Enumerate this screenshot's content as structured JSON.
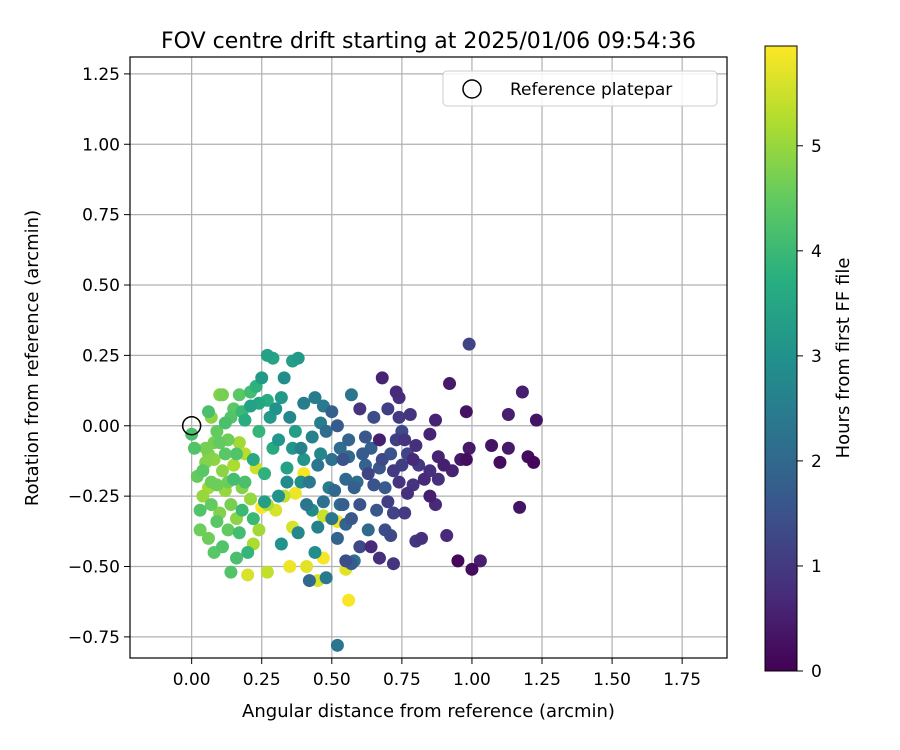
{
  "chart_data": {
    "type": "scatter",
    "title": "FOV centre drift starting at 2025/01/06 09:54:36",
    "xlabel": "Angular distance from reference (arcmin)",
    "ylabel": "Rotation from reference (arcmin)",
    "xlim": [
      -0.22,
      1.91
    ],
    "ylim": [
      -0.825,
      1.31
    ],
    "xticks": [
      0.0,
      0.25,
      0.5,
      0.75,
      1.0,
      1.25,
      1.5,
      1.75
    ],
    "xtick_labels": [
      "0.00",
      "0.25",
      "0.50",
      "0.75",
      "1.00",
      "1.25",
      "1.50",
      "1.75"
    ],
    "yticks": [
      1.25,
      1.0,
      0.75,
      0.5,
      0.25,
      0.0,
      -0.25,
      -0.5,
      -0.75
    ],
    "ytick_labels": [
      "1.25",
      "1.00",
      "0.75",
      "0.50",
      "0.25",
      "0.00",
      "−0.25",
      "−0.50",
      "−0.75"
    ],
    "grid": true,
    "legend": {
      "position": "top-right",
      "entries": [
        "Reference platepar"
      ]
    },
    "reference_point": {
      "x": 0.0,
      "y": 0.0
    },
    "colorbar": {
      "label": "Hours from first FF file",
      "range": [
        0,
        5.95
      ],
      "ticks": [
        0,
        1,
        2,
        3,
        4,
        5
      ],
      "tick_labels": [
        "0",
        "1",
        "2",
        "3",
        "4",
        "5"
      ],
      "colormap": "viridis"
    },
    "points": [
      [
        0.99,
        0.29,
        1.2
      ],
      [
        1.18,
        0.12,
        0.5
      ],
      [
        1.23,
        0.02,
        0.3
      ],
      [
        1.22,
        -0.13,
        0.1
      ],
      [
        1.2,
        -0.11,
        0.2
      ],
      [
        1.17,
        -0.29,
        0.3
      ],
      [
        1.13,
        -0.08,
        0.4
      ],
      [
        1.13,
        0.04,
        0.5
      ],
      [
        1.1,
        -0.13,
        0.2
      ],
      [
        1.07,
        -0.07,
        0.3
      ],
      [
        1.03,
        -0.48,
        0.5
      ],
      [
        1.0,
        -0.51,
        0.2
      ],
      [
        0.99,
        -0.08,
        0.4
      ],
      [
        0.98,
        -0.12,
        0.2
      ],
      [
        0.98,
        0.05,
        0.3
      ],
      [
        0.96,
        -0.12,
        0.4
      ],
      [
        0.95,
        -0.48,
        0.1
      ],
      [
        0.91,
        -0.39,
        0.7
      ],
      [
        0.92,
        0.15,
        0.4
      ],
      [
        0.88,
        -0.11,
        0.6
      ],
      [
        0.9,
        -0.14,
        0.5
      ],
      [
        0.87,
        0.02,
        0.6
      ],
      [
        0.87,
        -0.28,
        0.7
      ],
      [
        0.85,
        -0.03,
        0.6
      ],
      [
        0.85,
        -0.16,
        0.8
      ],
      [
        0.85,
        -0.25,
        0.5
      ],
      [
        0.82,
        -0.4,
        0.8
      ],
      [
        0.8,
        -0.41,
        0.9
      ],
      [
        0.79,
        -0.12,
        0.7
      ],
      [
        0.79,
        -0.21,
        0.9
      ],
      [
        0.77,
        -0.24,
        0.8
      ],
      [
        0.76,
        -0.05,
        0.9
      ],
      [
        0.76,
        -0.31,
        1.0
      ],
      [
        0.75,
        -0.14,
        1.1
      ],
      [
        0.74,
        0.1,
        0.8
      ],
      [
        0.73,
        0.12,
        0.7
      ],
      [
        0.74,
        0.03,
        1.0
      ],
      [
        0.73,
        -0.05,
        1.1
      ],
      [
        0.72,
        -0.16,
        1.0
      ],
      [
        0.72,
        -0.31,
        1.2
      ],
      [
        0.72,
        -0.49,
        0.9
      ],
      [
        0.71,
        -0.39,
        1.3
      ],
      [
        0.7,
        -0.27,
        1.1
      ],
      [
        0.69,
        -0.37,
        1.4
      ],
      [
        0.68,
        0.17,
        0.6
      ],
      [
        0.68,
        -0.12,
        1.3
      ],
      [
        0.67,
        -0.47,
        0.8
      ],
      [
        0.67,
        -0.05,
        0.5
      ],
      [
        0.65,
        -0.21,
        1.5
      ],
      [
        0.64,
        -0.43,
        0.7
      ],
      [
        0.63,
        -0.17,
        1.2
      ],
      [
        0.62,
        -0.04,
        1.6
      ],
      [
        0.61,
        -0.1,
        1.7
      ],
      [
        0.6,
        -0.28,
        1.5
      ],
      [
        0.6,
        0.06,
        0.9
      ],
      [
        0.58,
        -0.22,
        1.8
      ],
      [
        0.57,
        -0.33,
        1.6
      ],
      [
        0.57,
        -0.49,
        1.7
      ],
      [
        0.56,
        -0.05,
        1.9
      ],
      [
        0.55,
        -0.19,
        2.0
      ],
      [
        0.55,
        -0.48,
        1.4
      ],
      [
        0.54,
        -0.28,
        1.8
      ],
      [
        0.53,
        -0.08,
        2.1
      ],
      [
        0.52,
        0.0,
        1.7
      ],
      [
        0.51,
        -0.23,
        2.0
      ],
      [
        0.52,
        -0.4,
        1.9
      ],
      [
        0.52,
        -0.78,
        2.3
      ],
      [
        0.5,
        -0.12,
        2.2
      ],
      [
        0.5,
        0.05,
        1.8
      ],
      [
        0.48,
        -0.02,
        2.1
      ],
      [
        0.47,
        -0.27,
        2.2
      ],
      [
        0.47,
        0.07,
        2.4
      ],
      [
        0.45,
        -0.14,
        2.3
      ],
      [
        0.45,
        -0.36,
        2.6
      ],
      [
        0.44,
        0.1,
        2.5
      ],
      [
        0.42,
        -0.2,
        2.4
      ],
      [
        0.41,
        -0.28,
        2.3
      ],
      [
        0.4,
        0.08,
        2.5
      ],
      [
        0.39,
        -0.08,
        2.6
      ],
      [
        0.38,
        -0.38,
        2.7
      ],
      [
        0.38,
        0.24,
        3.2
      ],
      [
        0.36,
        0.23,
        3.3
      ],
      [
        0.35,
        0.03,
        2.7
      ],
      [
        0.34,
        -0.2,
        2.8
      ],
      [
        0.33,
        0.17,
        2.9
      ],
      [
        0.32,
        -0.42,
        3.0
      ],
      [
        0.31,
        -0.05,
        3.1
      ],
      [
        0.3,
        0.06,
        3.0
      ],
      [
        0.29,
        0.24,
        3.5
      ],
      [
        0.28,
        0.03,
        3.2
      ],
      [
        0.27,
        0.25,
        3.4
      ],
      [
        0.26,
        -0.27,
        3.3
      ],
      [
        0.25,
        0.17,
        3.2
      ],
      [
        0.24,
        0.08,
        3.5
      ],
      [
        0.23,
        0.14,
        3.8
      ],
      [
        0.22,
        -0.12,
        3.6
      ],
      [
        0.21,
        0.07,
        3.4
      ],
      [
        0.2,
        -0.45,
        3.9
      ],
      [
        0.19,
        0.02,
        3.7
      ],
      [
        0.18,
        -0.3,
        4.0
      ],
      [
        0.17,
        0.11,
        4.4
      ],
      [
        0.16,
        -0.47,
        4.2
      ],
      [
        0.15,
        -0.19,
        4.1
      ],
      [
        0.14,
        0.03,
        4.3
      ],
      [
        0.13,
        -0.37,
        4.5
      ],
      [
        0.12,
        -0.1,
        4.4
      ],
      [
        0.11,
        0.11,
        4.7
      ],
      [
        0.1,
        0.11,
        4.8
      ],
      [
        0.09,
        -0.21,
        4.6
      ],
      [
        0.08,
        -0.06,
        4.7
      ],
      [
        0.07,
        0.03,
        4.9
      ],
      [
        0.06,
        -0.4,
        4.6
      ],
      [
        0.06,
        0.05,
        4.2
      ],
      [
        0.05,
        -0.13,
        4.8
      ],
      [
        0.04,
        -0.25,
        5.0
      ],
      [
        0.03,
        -0.37,
        4.6
      ],
      [
        0.02,
        -0.18,
        4.5
      ],
      [
        0.01,
        -0.08,
        4.3
      ],
      [
        0.0,
        -0.03,
        4.2
      ],
      [
        0.08,
        -0.45,
        4.4
      ],
      [
        0.14,
        -0.52,
        4.3
      ],
      [
        0.2,
        -0.53,
        5.6
      ],
      [
        0.27,
        -0.52,
        5.4
      ],
      [
        0.35,
        -0.5,
        5.8
      ],
      [
        0.41,
        -0.5,
        5.7
      ],
      [
        0.45,
        -0.55,
        5.6
      ],
      [
        0.47,
        -0.47,
        5.9
      ],
      [
        0.52,
        -0.34,
        5.8
      ],
      [
        0.55,
        -0.51,
        5.7
      ],
      [
        0.56,
        -0.62,
        5.9
      ],
      [
        0.47,
        -0.32,
        5.5
      ],
      [
        0.4,
        -0.17,
        5.9
      ],
      [
        0.38,
        -0.38,
        5.6
      ],
      [
        0.37,
        -0.24,
        5.8
      ],
      [
        0.36,
        -0.36,
        5.6
      ],
      [
        0.33,
        -0.25,
        5.4
      ],
      [
        0.3,
        -0.3,
        5.6
      ],
      [
        0.27,
        -0.28,
        5.2
      ],
      [
        0.25,
        -0.29,
        5.9
      ],
      [
        0.24,
        -0.37,
        5.1
      ],
      [
        0.23,
        -0.15,
        5.5
      ],
      [
        0.22,
        -0.42,
        5.2
      ],
      [
        0.21,
        -0.26,
        5.0
      ],
      [
        0.19,
        -0.1,
        5.3
      ],
      [
        0.18,
        -0.22,
        4.8
      ],
      [
        0.17,
        -0.06,
        5.1
      ],
      [
        0.16,
        -0.33,
        4.9
      ],
      [
        0.15,
        -0.14,
        5.2
      ],
      [
        0.14,
        -0.28,
        4.7
      ],
      [
        0.13,
        -0.05,
        4.6
      ],
      [
        0.12,
        -0.23,
        5.0
      ],
      [
        0.11,
        -0.16,
        4.9
      ],
      [
        0.1,
        -0.31,
        4.8
      ],
      [
        0.09,
        -0.02,
        4.5
      ],
      [
        0.08,
        -0.12,
        4.9
      ],
      [
        0.07,
        -0.28,
        4.5
      ],
      [
        0.06,
        -0.22,
        5.1
      ],
      [
        0.05,
        -0.08,
        4.7
      ],
      [
        0.04,
        -0.16,
        4.4
      ],
      [
        0.03,
        -0.3,
        4.3
      ],
      [
        0.44,
        -0.45,
        2.9
      ],
      [
        0.42,
        -0.55,
        2.0
      ],
      [
        0.48,
        -0.54,
        2.4
      ],
      [
        0.58,
        -0.48,
        2.2
      ],
      [
        0.63,
        -0.37,
        2.0
      ],
      [
        0.66,
        -0.3,
        1.6
      ],
      [
        0.69,
        -0.22,
        1.7
      ],
      [
        0.62,
        -0.14,
        1.9
      ],
      [
        0.59,
        -0.2,
        2.1
      ],
      [
        0.54,
        -0.12,
        1.5
      ],
      [
        0.49,
        -0.22,
        2.5
      ],
      [
        0.46,
        -0.1,
        2.7
      ],
      [
        0.43,
        -0.3,
        2.8
      ],
      [
        0.4,
        -0.12,
        3.1
      ],
      [
        0.37,
        -0.02,
        3.3
      ],
      [
        0.34,
        -0.15,
        3.4
      ],
      [
        0.31,
        -0.25,
        3.0
      ],
      [
        0.29,
        -0.08,
        3.6
      ],
      [
        0.27,
        0.09,
        3.7
      ],
      [
        0.26,
        -0.17,
        3.8
      ],
      [
        0.24,
        -0.02,
        3.9
      ],
      [
        0.22,
        -0.33,
        4.0
      ],
      [
        0.21,
        0.12,
        4.1
      ],
      [
        0.19,
        -0.2,
        4.2
      ],
      [
        0.18,
        0.05,
        4.0
      ],
      [
        0.17,
        -0.38,
        4.1
      ],
      [
        0.16,
        -0.1,
        4.3
      ],
      [
        0.15,
        0.06,
        4.4
      ],
      [
        0.13,
        -0.2,
        4.6
      ],
      [
        0.12,
        0.01,
        4.2
      ],
      [
        0.11,
        -0.43,
        4.3
      ],
      [
        0.1,
        -0.06,
        4.5
      ],
      [
        0.09,
        -0.34,
        4.4
      ],
      [
        0.07,
        -0.2,
        4.6
      ],
      [
        0.06,
        -0.1,
        4.8
      ],
      [
        0.65,
        0.03,
        1.4
      ],
      [
        0.7,
        0.06,
        1.1
      ],
      [
        0.78,
        0.04,
        0.9
      ],
      [
        0.8,
        -0.07,
        0.8
      ],
      [
        0.83,
        -0.19,
        0.7
      ],
      [
        0.88,
        -0.19,
        0.8
      ],
      [
        0.93,
        -0.16,
        0.6
      ],
      [
        0.6,
        -0.43,
        1.3
      ],
      [
        0.55,
        -0.35,
        1.9
      ],
      [
        0.57,
        0.11,
        2.3
      ],
      [
        0.32,
        0.1,
        3.2
      ],
      [
        0.36,
        -0.08,
        3.1
      ],
      [
        0.39,
        -0.2,
        2.9
      ],
      [
        0.43,
        -0.04,
        2.6
      ],
      [
        0.46,
        0.01,
        2.5
      ],
      [
        0.5,
        -0.33,
        2.3
      ],
      [
        0.53,
        -0.28,
        2.1
      ],
      [
        0.56,
        -0.11,
        2.0
      ],
      [
        0.64,
        -0.08,
        1.8
      ],
      [
        0.67,
        -0.15,
        1.6
      ],
      [
        0.71,
        -0.1,
        1.5
      ],
      [
        0.75,
        -0.02,
        1.3
      ],
      [
        0.77,
        -0.1,
        1.2
      ],
      [
        0.74,
        -0.2,
        0.9
      ],
      [
        0.81,
        -0.14,
        1.0
      ]
    ]
  }
}
